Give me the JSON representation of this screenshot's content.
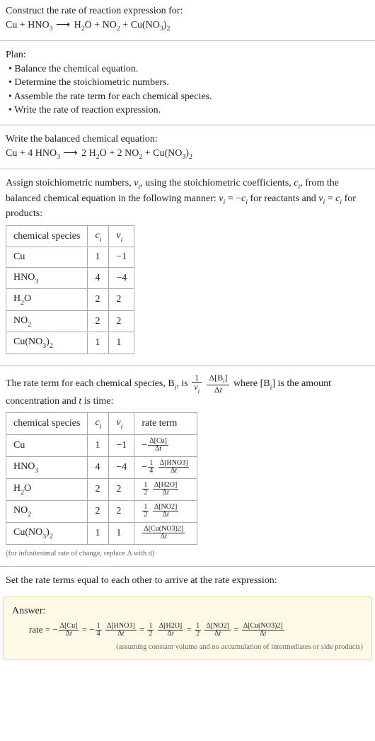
{
  "intro": {
    "line1": "Construct the rate of reaction expression for:",
    "equation_parts": {
      "lhs1": "Cu",
      "plus": " + ",
      "lhs2": "HNO",
      "lhs2_sub": "3",
      "arrow": " ⟶ ",
      "r1": "H",
      "r1_sub": "2",
      "r1b": "O",
      "r2": "NO",
      "r2_sub": "2",
      "r3": "Cu(NO",
      "r3_sub": "3",
      "r3b": ")",
      "r3_sub2": "2"
    }
  },
  "plan": {
    "heading": "Plan:",
    "b1": "• Balance the chemical equation.",
    "b2": "• Determine the stoichiometric numbers.",
    "b3": "• Assemble the rate term for each chemical species.",
    "b4": "• Write the rate of reaction expression."
  },
  "balanced": {
    "heading": "Write the balanced chemical equation:",
    "parts": {
      "t1": "Cu + 4 HNO",
      "s1": "3",
      "arrow": " ⟶ ",
      "t2": "2 H",
      "s2": "2",
      "t2b": "O + 2 NO",
      "s3": "2",
      "t3": " + Cu(NO",
      "s4": "3",
      "t3b": ")",
      "s5": "2"
    }
  },
  "stoich": {
    "para_a": "Assign stoichiometric numbers, ",
    "nu": "ν",
    "sub_i": "i",
    "para_b": ", using the stoichiometric coefficients, ",
    "c": "c",
    "para_c": ", from the balanced chemical equation in the following manner: ",
    "eq1a": "ν",
    "eq1b": " = −",
    "eq1c": "c",
    "para_d": " for reactants and ",
    "eq2a": "ν",
    "eq2b": " = ",
    "eq2c": "c",
    "para_e": " for products:",
    "table": {
      "h1": "chemical species",
      "h2": "c",
      "h2_sub": "i",
      "h3": "ν",
      "h3_sub": "i",
      "rows": [
        {
          "sp_a": "Cu",
          "sp_b": "",
          "sp_c": "",
          "c": "1",
          "v": "−1"
        },
        {
          "sp_a": "HNO",
          "sp_b": "3",
          "sp_c": "",
          "c": "4",
          "v": "−4"
        },
        {
          "sp_a": "H",
          "sp_b": "2",
          "sp_c": "O",
          "c": "2",
          "v": "2"
        },
        {
          "sp_a": "NO",
          "sp_b": "2",
          "sp_c": "",
          "c": "2",
          "v": "2"
        },
        {
          "sp_a": "Cu(NO",
          "sp_b": "3",
          "sp_c": ")",
          "sp_d": "2",
          "c": "1",
          "v": "1"
        }
      ]
    }
  },
  "rateterm": {
    "para_a": "The rate term for each chemical species, B",
    "sub_i": "i",
    "para_b": ", is ",
    "frac1_num": "1",
    "frac1_den_a": "ν",
    "frac1_den_sub": "i",
    "frac2_num_a": "Δ[B",
    "frac2_num_sub": "i",
    "frac2_num_b": "]",
    "frac2_den": "Δt",
    "para_c": " where [B",
    "para_c_sub": "i",
    "para_d": "] is the amount concentration and ",
    "t_ital": "t",
    "para_e": " is time:",
    "table": {
      "h1": "chemical species",
      "h2": "c",
      "h2_sub": "i",
      "h3": "ν",
      "h3_sub": "i",
      "h4": "rate term",
      "rows": [
        {
          "sp_a": "Cu",
          "sp_b": "",
          "sp_c": "",
          "c": "1",
          "v": "−1",
          "pre": "−",
          "coef_num": "",
          "coef_den": "",
          "d_num": "Δ[Cu]",
          "d_den": "Δt"
        },
        {
          "sp_a": "HNO",
          "sp_b": "3",
          "sp_c": "",
          "c": "4",
          "v": "−4",
          "pre": "−",
          "coef_num": "1",
          "coef_den": "4",
          "d_num": "Δ[HNO3]",
          "d_den": "Δt"
        },
        {
          "sp_a": "H",
          "sp_b": "2",
          "sp_c": "O",
          "c": "2",
          "v": "2",
          "pre": "",
          "coef_num": "1",
          "coef_den": "2",
          "d_num": "Δ[H2O]",
          "d_den": "Δt"
        },
        {
          "sp_a": "NO",
          "sp_b": "2",
          "sp_c": "",
          "c": "2",
          "v": "2",
          "pre": "",
          "coef_num": "1",
          "coef_den": "2",
          "d_num": "Δ[NO2]",
          "d_den": "Δt"
        },
        {
          "sp_a": "Cu(NO",
          "sp_b": "3",
          "sp_c": ")",
          "sp_d": "2",
          "c": "1",
          "v": "1",
          "pre": "",
          "coef_num": "",
          "coef_den": "",
          "d_num": "Δ[Cu(NO3)2]",
          "d_den": "Δt"
        }
      ]
    },
    "footnote": "(for infinitesimal rate of change, replace Δ with d)"
  },
  "final": {
    "para": "Set the rate terms equal to each other to arrive at the rate expression:"
  },
  "answer": {
    "heading": "Answer:",
    "lead": "rate = ",
    "terms": [
      {
        "pre": "−",
        "coef_num": "",
        "coef_den": "",
        "d_num": "Δ[Cu]",
        "d_den": "Δt"
      },
      {
        "pre": "−",
        "coef_num": "1",
        "coef_den": "4",
        "d_num": "Δ[HNO3]",
        "d_den": "Δt"
      },
      {
        "pre": "",
        "coef_num": "1",
        "coef_den": "2",
        "d_num": "Δ[H2O]",
        "d_den": "Δt"
      },
      {
        "pre": "",
        "coef_num": "1",
        "coef_den": "2",
        "d_num": "Δ[NO2]",
        "d_den": "Δt"
      },
      {
        "pre": "",
        "coef_num": "",
        "coef_den": "",
        "d_num": "Δ[Cu(NO3)2]",
        "d_den": "Δt"
      }
    ],
    "eq": " = ",
    "footnote": "(assuming constant volume and no accumulation of intermediates or side products)"
  },
  "style": {
    "body_font_size": 14,
    "fine_font_size": 10.5,
    "table_border_color": "#aaa",
    "divider_color": "#bbb",
    "answer_bg": "#fff9e8",
    "answer_border": "#e8dca8",
    "text_color": "#222"
  }
}
